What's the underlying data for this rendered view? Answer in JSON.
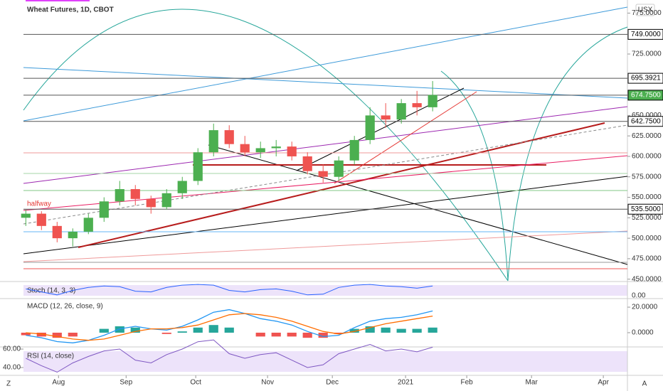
{
  "chart_data": {
    "type": "candlestick",
    "title": "Wheat Futures, 1D, CBOT",
    "currency": "USX",
    "annotation": "halfway",
    "up_color": "#4caf50",
    "down_color": "#ef5350",
    "open": [
      525,
      530,
      515,
      500,
      508,
      525,
      545,
      560,
      548,
      538,
      555,
      570,
      605,
      632,
      615,
      605,
      610,
      612,
      600,
      582,
      575,
      595,
      620,
      650,
      645,
      665,
      660
    ],
    "high": [
      535,
      533,
      520,
      512,
      530,
      550,
      570,
      565,
      552,
      560,
      575,
      610,
      640,
      638,
      625,
      618,
      620,
      618,
      605,
      590,
      600,
      625,
      660,
      665,
      670,
      680,
      692
    ],
    "low": [
      515,
      510,
      495,
      490,
      505,
      520,
      540,
      540,
      530,
      535,
      548,
      565,
      600,
      610,
      600,
      598,
      600,
      595,
      578,
      568,
      570,
      590,
      615,
      635,
      640,
      650,
      655
    ],
    "close": [
      530,
      515,
      500,
      508,
      525,
      545,
      560,
      548,
      538,
      555,
      570,
      605,
      632,
      615,
      605,
      610,
      612,
      600,
      582,
      575,
      595,
      620,
      650,
      645,
      665,
      660,
      675
    ],
    "xlim": [
      -0.15,
      38.45
    ],
    "xticks": [
      {
        "value": 2.09,
        "label": "Aug"
      },
      {
        "value": 6.41,
        "label": "Sep"
      },
      {
        "value": 10.86,
        "label": "Oct"
      },
      {
        "value": 15.45,
        "label": "Nov"
      },
      {
        "value": 19.59,
        "label": "Dec"
      },
      {
        "value": 24.27,
        "label": "2021"
      },
      {
        "value": 28.18,
        "label": "Feb"
      },
      {
        "value": 32.32,
        "label": "Mar"
      },
      {
        "value": 36.91,
        "label": "Apr"
      }
    ],
    "ylim": [
      448,
      791
    ],
    "yticks": [
      {
        "value": 450,
        "label": "450.0000"
      },
      {
        "value": 475,
        "label": "475.0000"
      },
      {
        "value": 500,
        "label": "500.0000"
      },
      {
        "value": 525,
        "label": "525.0000"
      },
      {
        "value": 550,
        "label": "550.0000"
      },
      {
        "value": 575,
        "label": "575.0000"
      },
      {
        "value": 600,
        "label": "600.0000"
      },
      {
        "value": 625,
        "label": "625.0000"
      },
      {
        "value": 650,
        "label": "650.0000"
      },
      {
        "value": 725,
        "label": "725.0000"
      },
      {
        "value": 775,
        "label": "775.0000"
      }
    ],
    "levels": [
      {
        "value": 749,
        "label": "749.0000",
        "color": "#ffffff"
      },
      {
        "value": 695.3921,
        "label": "695.3921",
        "color": "#ffffff"
      },
      {
        "value": 674.75,
        "label": "674.7500",
        "color": "#4caf50"
      },
      {
        "value": 642.75,
        "label": "642.7500",
        "color": "#ffffff"
      },
      {
        "value": 535.5,
        "label": "535.5000",
        "color": "#ffffff"
      }
    ],
    "stoch": {
      "title": "Stoch (14, 3, 3)",
      "ylim": [
        0,
        100
      ],
      "yticks": [
        {
          "value": 0,
          "label": "0.00"
        }
      ],
      "color": "#2962ff",
      "values": [
        60,
        40,
        20,
        50,
        70,
        80,
        75,
        45,
        40,
        70,
        85,
        90,
        85,
        50,
        40,
        55,
        60,
        45,
        20,
        25,
        70,
        85,
        90,
        80,
        75,
        65,
        80
      ]
    },
    "macd": {
      "title": "MACD (12, 26, close, 9)",
      "ylim": [
        -10.6,
        25.6
      ],
      "yticks": [
        {
          "value": 20,
          "label": "20.0000"
        },
        {
          "value": 0,
          "label": "0.0000"
        }
      ],
      "series": [
        {
          "name": "MACD",
          "color": "#2196f3",
          "values": [
            -2,
            -4,
            -7,
            -8,
            -6,
            -2,
            3,
            5,
            3,
            2,
            5,
            10,
            16,
            18,
            15,
            11,
            9,
            6,
            1,
            -3,
            -2,
            4,
            9,
            11,
            12,
            14,
            17
          ]
        },
        {
          "name": "Signal",
          "color": "#ff6d00",
          "values": [
            0,
            -1,
            -3,
            -5,
            -6,
            -5,
            -2,
            1,
            3,
            3,
            4,
            6,
            10,
            14,
            15,
            14,
            12,
            9,
            5,
            1,
            -1,
            1,
            4,
            7,
            9,
            11,
            13
          ]
        }
      ],
      "histogram": [
        -2,
        -3,
        -4,
        -3,
        0,
        3,
        5,
        4,
        0,
        -1,
        1,
        4,
        6,
        4,
        0,
        -3,
        -3,
        -3,
        -4,
        -4,
        -1,
        3,
        5,
        4,
        3,
        3,
        4
      ]
    },
    "rsi": {
      "title": "RSI (14, close)",
      "ylim": [
        32.3,
        60.8
      ],
      "yticks": [
        {
          "value": 60,
          "label": "60.00"
        },
        {
          "value": 40,
          "label": "40.00"
        }
      ],
      "color": "#7e57c2",
      "values": [
        50,
        42,
        35,
        45,
        52,
        58,
        60,
        48,
        45,
        54,
        60,
        68,
        70,
        55,
        50,
        54,
        56,
        48,
        40,
        43,
        55,
        60,
        65,
        58,
        60,
        57,
        62
      ]
    },
    "toolbar": [
      "Z",
      "A"
    ]
  }
}
